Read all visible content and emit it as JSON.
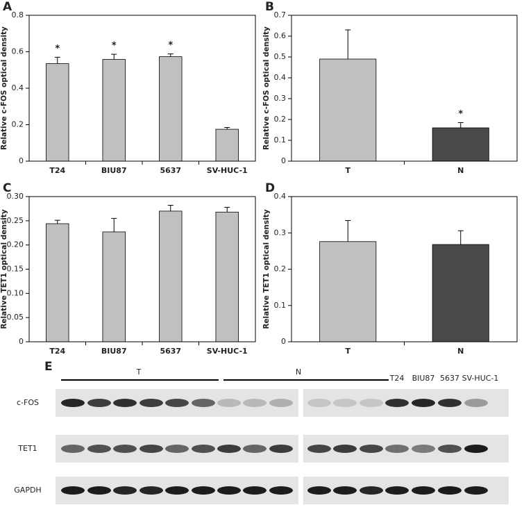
{
  "chart_data": [
    {
      "type": "bar",
      "label": "A",
      "ylabel": "Relative c-FOS optical density",
      "categories": [
        "T24",
        "BIU87",
        "5637",
        "SV-HUC-1"
      ],
      "values": [
        0.535,
        0.558,
        0.573,
        0.175
      ],
      "errors": [
        0.035,
        0.028,
        0.015,
        0.01
      ],
      "colors": [
        "#c0c0c0",
        "#c0c0c0",
        "#c0c0c0",
        "#c0c0c0"
      ],
      "annotations": [
        "*",
        "*",
        "*",
        null
      ],
      "ylim": [
        0,
        0.8
      ],
      "yticks": [
        0,
        0.2,
        0.4,
        0.6,
        0.8
      ]
    },
    {
      "type": "bar",
      "label": "B",
      "ylabel": "Relative c-FOS optical density",
      "categories": [
        "T",
        "N"
      ],
      "values": [
        0.49,
        0.16
      ],
      "errors": [
        0.14,
        0.025
      ],
      "colors": [
        "#c0c0c0",
        "#4a4a4a"
      ],
      "annotations": [
        null,
        "*"
      ],
      "ylim": [
        0,
        0.7
      ],
      "yticks": [
        0,
        0.1,
        0.2,
        0.3,
        0.4,
        0.5,
        0.6,
        0.7
      ]
    },
    {
      "type": "bar",
      "label": "C",
      "ylabel": "Relative TET1 optical density",
      "categories": [
        "T24",
        "BIU87",
        "5637",
        "SV-HUC-1"
      ],
      "values": [
        0.244,
        0.227,
        0.27,
        0.268
      ],
      "errors": [
        0.007,
        0.028,
        0.012,
        0.01
      ],
      "colors": [
        "#c0c0c0",
        "#c0c0c0",
        "#c0c0c0",
        "#c0c0c0"
      ],
      "ylim": [
        0,
        0.3
      ],
      "yticks": [
        0,
        0.05,
        {
          "value": 0.1,
          "label": "0.10"
        },
        0.15,
        {
          "value": 0.2,
          "label": "0.20"
        },
        0.25,
        {
          "value": 0.3,
          "label": "0.30"
        }
      ]
    },
    {
      "type": "bar",
      "label": "D",
      "ylabel": "Relative TET1 optical density",
      "categories": [
        "T",
        "N"
      ],
      "values": [
        0.276,
        0.268
      ],
      "errors": [
        0.058,
        0.038
      ],
      "colors": [
        "#c0c0c0",
        "#4a4a4a"
      ],
      "ylim": [
        0,
        0.4
      ],
      "yticks": [
        0,
        0.1,
        0.2,
        0.3,
        0.4
      ]
    }
  ],
  "blot": {
    "label": "E",
    "groups": [
      "T",
      "N"
    ],
    "cell_lines": [
      "T24",
      "BIU87",
      "5637",
      "SV-HUC-1"
    ],
    "rows": [
      "c-FOS",
      "TET1",
      "GAPDH"
    ]
  }
}
